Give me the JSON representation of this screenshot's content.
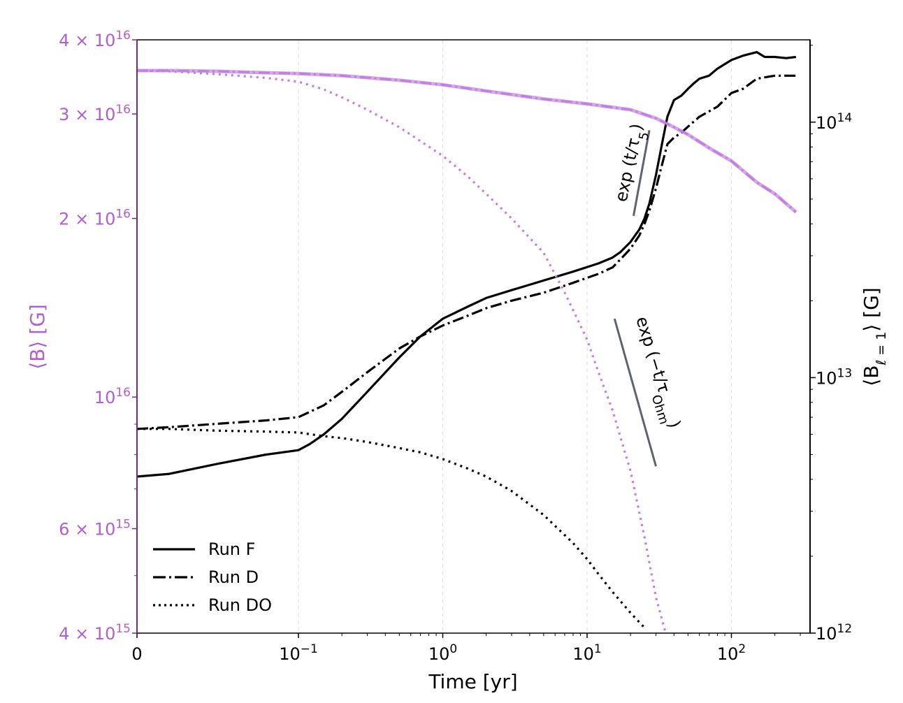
{
  "chart_data": {
    "type": "line",
    "x_scale": "symlog",
    "x_ticks": [
      {
        "value": 0,
        "base": "0",
        "exp": ""
      },
      {
        "value": 0.1,
        "base": "10",
        "exp": "−1"
      },
      {
        "value": 1,
        "base": "10",
        "exp": "0"
      },
      {
        "value": 10,
        "base": "10",
        "exp": "1"
      },
      {
        "value": 100,
        "base": "10",
        "exp": "2"
      }
    ],
    "xlim": [
      0,
      300
    ],
    "xlabel": "Time [yr]",
    "y_left": {
      "label": "⟨B⟩ [G]",
      "scale": "log",
      "ylim": [
        4000000000000000.0,
        4e+16
      ],
      "color": "#b05fd0",
      "ticks": [
        {
          "value": 4000000000000000.0,
          "pre": "4 × 10",
          "exp": "15"
        },
        {
          "value": 6000000000000000.0,
          "pre": "6 × 10",
          "exp": "15"
        },
        {
          "value": 1e+16,
          "pre": "10",
          "exp": "16"
        },
        {
          "value": 2e+16,
          "pre": "2 × 10",
          "exp": "16"
        },
        {
          "value": 3e+16,
          "pre": "3 × 10",
          "exp": "16"
        },
        {
          "value": 4e+16,
          "pre": "4 × 10",
          "exp": "16"
        }
      ]
    },
    "y_right": {
      "label": "⟨B",
      "label_sub": "ℓ = 1",
      "label_tail": "⟩ [G]",
      "scale": "log",
      "ylim": [
        1000000000000.0,
        210000000000000.0
      ],
      "color": "#000000",
      "ticks": [
        {
          "value": 1000000000000.0,
          "base": "10",
          "exp": "12"
        },
        {
          "value": 10000000000000.0,
          "base": "10",
          "exp": "13"
        },
        {
          "value": 100000000000000.0,
          "base": "10",
          "exp": "14"
        }
      ]
    },
    "series": [
      {
        "name": "Run F",
        "axis": "right",
        "style": "solid",
        "color": "#000000",
        "x": [
          0,
          0.02,
          0.05,
          0.08,
          0.1,
          0.12,
          0.15,
          0.2,
          0.3,
          0.5,
          0.7,
          1,
          1.5,
          2,
          3,
          5,
          8,
          12,
          15,
          17,
          20,
          23,
          25,
          27,
          30,
          33,
          36,
          40,
          45,
          50,
          55,
          60,
          70,
          80,
          100,
          120,
          150,
          170,
          200,
          240,
          280
        ],
        "y": [
          4100000000000.0,
          4200000000000.0,
          4600000000000.0,
          5000000000000.0,
          5200000000000.0,
          5500000000000.0,
          6000000000000.0,
          6900000000000.0,
          8800000000000.0,
          12000000000000.0,
          14500000000000.0,
          17000000000000.0,
          19000000000000.0,
          20500000000000.0,
          22000000000000.0,
          24000000000000.0,
          26000000000000.0,
          28000000000000.0,
          29500000000000.0,
          31000000000000.0,
          34000000000000.0,
          38000000000000.0,
          42000000000000.0,
          48000000000000.0,
          62000000000000.0,
          82000000000000.0,
          105000000000000.0,
          122000000000000.0,
          127000000000000.0,
          135000000000000.0,
          142000000000000.0,
          148000000000000.0,
          152000000000000.0,
          162000000000000.0,
          175000000000000.0,
          182000000000000.0,
          188000000000000.0,
          180000000000000.0,
          180000000000000.0,
          178000000000000.0,
          180000000000000.0
        ]
      },
      {
        "name": "Run D",
        "axis": "right",
        "style": "dashdot",
        "color": "#000000",
        "x": [
          0,
          0.02,
          0.05,
          0.08,
          0.1,
          0.15,
          0.2,
          0.3,
          0.5,
          0.7,
          1,
          1.5,
          2,
          3,
          5,
          8,
          12,
          15,
          17,
          20,
          23,
          25,
          27,
          30,
          33,
          36,
          40,
          45,
          50,
          60,
          80,
          100,
          120,
          150,
          200,
          280
        ],
        "y": [
          6300000000000.0,
          6400000000000.0,
          6600000000000.0,
          6800000000000.0,
          7000000000000.0,
          7800000000000.0,
          8800000000000.0,
          10500000000000.0,
          13000000000000.0,
          14500000000000.0,
          16000000000000.0,
          17500000000000.0,
          18700000000000.0,
          20000000000000.0,
          21500000000000.0,
          23500000000000.0,
          25500000000000.0,
          27000000000000.0,
          29000000000000.0,
          32000000000000.0,
          36000000000000.0,
          40000000000000.0,
          45000000000000.0,
          55000000000000.0,
          68000000000000.0,
          82000000000000.0,
          87000000000000.0,
          91000000000000.0,
          96000000000000.0,
          105000000000000.0,
          115000000000000.0,
          130000000000000.0,
          135000000000000.0,
          148000000000000.0,
          152000000000000.0,
          152000000000000.0
        ]
      },
      {
        "name": "Run DO",
        "axis": "right",
        "style": "dotted",
        "color": "#000000",
        "x": [
          0,
          0.02,
          0.05,
          0.08,
          0.1,
          0.15,
          0.2,
          0.3,
          0.5,
          0.7,
          1,
          1.5,
          2,
          3,
          5,
          8,
          10,
          12,
          15,
          20,
          25
        ],
        "y": [
          6300000000000.0,
          6300000000000.0,
          6200000000000.0,
          6150000000000.0,
          6100000000000.0,
          5900000000000.0,
          5800000000000.0,
          5600000000000.0,
          5300000000000.0,
          5100000000000.0,
          4800000000000.0,
          4400000000000.0,
          4100000000000.0,
          3600000000000.0,
          2900000000000.0,
          2250000000000.0,
          1950000000000.0,
          1700000000000.0,
          1450000000000.0,
          1200000000000.0,
          1050000000000.0
        ]
      },
      {
        "axis": "left",
        "style": "solid",
        "color": "#b05fd0",
        "width": 5,
        "opacity": 0.55,
        "x": [
          0,
          0.02,
          0.05,
          0.08,
          0.1,
          0.2,
          0.5,
          1,
          2,
          5,
          10,
          20,
          30,
          40,
          50,
          70,
          100,
          150,
          200,
          280
        ],
        "y": [
          3.55e+16,
          3.55e+16,
          3.54e+16,
          3.52e+16,
          3.51e+16,
          3.48e+16,
          3.42e+16,
          3.36e+16,
          3.28e+16,
          3.18e+16,
          3.12e+16,
          3.05e+16,
          2.95e+16,
          2.85e+16,
          2.77e+16,
          2.63e+16,
          2.5e+16,
          2.3e+16,
          2.2e+16,
          2.05e+16
        ]
      },
      {
        "axis": "left",
        "style": "dashdot",
        "color": "#c080e0",
        "x": [
          0,
          0.02,
          0.05,
          0.08,
          0.1,
          0.2,
          0.5,
          1,
          2,
          5,
          10,
          20,
          30,
          40,
          50,
          70,
          100,
          150,
          200,
          280
        ],
        "y": [
          3.55e+16,
          3.55e+16,
          3.54e+16,
          3.52e+16,
          3.51e+16,
          3.48e+16,
          3.42e+16,
          3.36e+16,
          3.28e+16,
          3.18e+16,
          3.12e+16,
          3.05e+16,
          2.95e+16,
          2.85e+16,
          2.77e+16,
          2.63e+16,
          2.5e+16,
          2.3e+16,
          2.2e+16,
          2.05e+16
        ]
      },
      {
        "axis": "left",
        "style": "dotted",
        "color": "#c080e0",
        "x": [
          0,
          0.02,
          0.05,
          0.08,
          0.1,
          0.15,
          0.2,
          0.3,
          0.5,
          0.7,
          1,
          1.5,
          2,
          3,
          5,
          7,
          10,
          12,
          15,
          20,
          25,
          30,
          35
        ],
        "y": [
          3.55e+16,
          3.54e+16,
          3.5e+16,
          3.45e+16,
          3.4e+16,
          3.3e+16,
          3.2e+16,
          3.05e+16,
          2.85e+16,
          2.7e+16,
          2.55e+16,
          2.35e+16,
          2.2e+16,
          2e+16,
          1.75e+16,
          1.5e+16,
          1.25e+16,
          1.1e+16,
          9500000000000000.0,
          7500000000000000.0,
          5800000000000000.0,
          4600000000000000.0,
          4000000000000000.0
        ]
      }
    ],
    "annotations": [
      {
        "text": "exp (t/τ",
        "sub": "5",
        "tail": ")"
      },
      {
        "text": "exp (−t/τ",
        "sub": "Ohm",
        "tail": ")"
      }
    ],
    "guide_lines": [
      {
        "color": "#5f6370",
        "axis": "right",
        "x": [
          21,
          27
        ],
        "y": [
          43000000000000.0,
          93000000000000.0
        ]
      },
      {
        "color": "#5f6370",
        "axis": "right",
        "x": [
          15.5,
          30
        ],
        "y": [
          17000000000000.0,
          4500000000000.0
        ]
      }
    ],
    "grid": "vertical-dashed",
    "legend": {
      "position": "bottom-left",
      "entries": [
        {
          "label": "Run F",
          "style": "solid"
        },
        {
          "label": "Run D",
          "style": "dashdot"
        },
        {
          "label": "Run DO",
          "style": "dotted"
        }
      ]
    }
  }
}
